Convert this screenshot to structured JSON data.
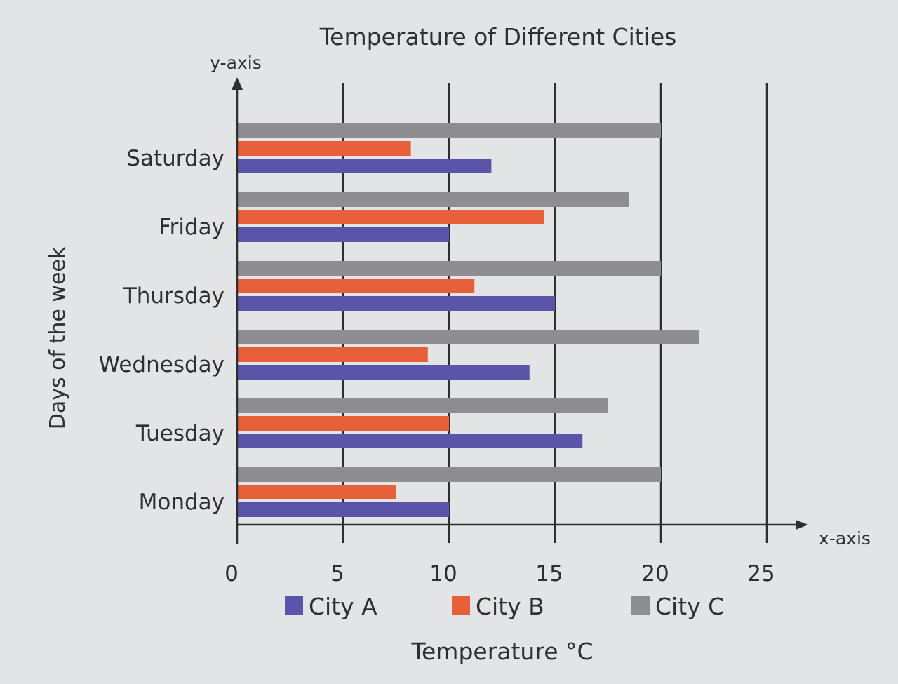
{
  "chart_data": {
    "type": "bar",
    "orientation": "horizontal",
    "title": "Temperature of Different Cities",
    "xlabel": "Temperature °C",
    "ylabel": "Days of the week",
    "x_axis_tag": "x-axis",
    "y_axis_tag": "y-axis",
    "categories": [
      "Monday",
      "Tuesday",
      "Wednesday",
      "Thursday",
      "Friday",
      "Saturday"
    ],
    "series": [
      {
        "name": "City A",
        "color": "#5a55a8",
        "values": [
          10,
          16.3,
          13.8,
          15,
          10,
          12
        ]
      },
      {
        "name": "City B",
        "color": "#e8603a",
        "values": [
          7.5,
          10,
          9,
          11.2,
          14.5,
          8.2
        ]
      },
      {
        "name": "City C",
        "color": "#8e8e92",
        "values": [
          20,
          17.5,
          21.8,
          20,
          18.5,
          20
        ]
      }
    ],
    "xlim": [
      0,
      25
    ],
    "xticks": [
      0,
      5,
      10,
      15,
      20,
      25
    ],
    "grid": "vertical",
    "legend_position": "bottom"
  }
}
